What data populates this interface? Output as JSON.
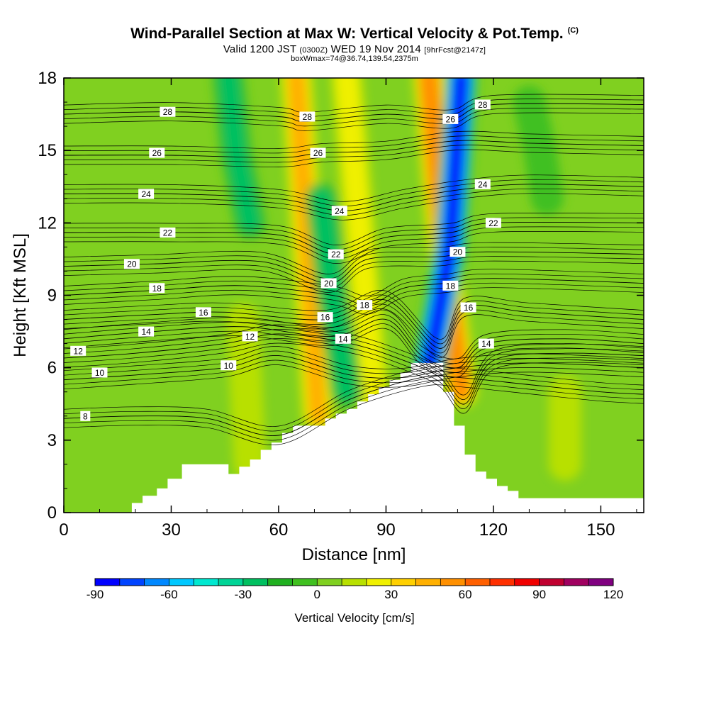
{
  "header": {
    "title": "Wind-Parallel Section at Max W: Vertical Velocity & Pot.Temp.",
    "copyright": "(C)",
    "valid_prefix": "Valid 1200 JST",
    "valid_zulu": "(0300Z)",
    "valid_date": "WED 19 Nov 2014",
    "forecast": "[9hrFcst@2147z]",
    "box_info": "boxWmax=74@36.74,139.54,2375m"
  },
  "chart_data": {
    "type": "heatmap",
    "xlabel": "Distance [nm]",
    "ylabel": "Height [Kft MSL]",
    "xlim": [
      0,
      162
    ],
    "ylim": [
      0,
      18
    ],
    "xticks": [
      0,
      30,
      60,
      90,
      120,
      150
    ],
    "yticks": [
      0,
      3,
      6,
      9,
      12,
      15,
      18
    ],
    "grid": false,
    "colorbar": {
      "label": "Vertical Velocity [cm/s]",
      "min": -90,
      "max": 120,
      "step": 10,
      "ticks": [
        -90,
        -60,
        -30,
        0,
        30,
        60,
        90,
        120
      ],
      "colors": [
        "#0000ff",
        "#0044ff",
        "#0088ff",
        "#00c8ff",
        "#00e8d0",
        "#00d496",
        "#00c060",
        "#20b020",
        "#40c020",
        "#80d020",
        "#b8e000",
        "#f0f000",
        "#ffd000",
        "#ffb000",
        "#ff9000",
        "#ff6000",
        "#ff3000",
        "#f00000",
        "#c00030",
        "#a00060",
        "#800080"
      ]
    },
    "terrain": {
      "x": [
        0,
        19,
        19,
        22,
        22,
        26,
        26,
        29,
        29,
        33,
        33,
        46,
        46,
        49,
        49,
        52,
        52,
        55,
        55,
        58,
        58,
        61,
        61,
        64,
        64,
        67,
        67,
        73,
        73,
        76,
        76,
        79,
        79,
        82,
        82,
        85,
        85,
        88,
        88,
        91,
        91,
        94,
        94,
        97,
        97,
        100,
        100,
        106,
        106,
        109,
        109,
        112,
        112,
        115,
        115,
        118,
        118,
        121,
        121,
        124,
        124,
        127,
        127,
        130,
        130,
        162
      ],
      "y": [
        0,
        0,
        0.4,
        0.4,
        0.7,
        0.7,
        1.0,
        1.0,
        1.4,
        1.4,
        2.0,
        2.0,
        1.6,
        1.6,
        1.9,
        1.9,
        2.2,
        2.2,
        2.6,
        2.6,
        2.9,
        2.9,
        3.3,
        3.3,
        3.6,
        3.6,
        3.6,
        3.6,
        3.9,
        3.9,
        4.1,
        4.1,
        4.3,
        4.3,
        4.6,
        4.6,
        4.9,
        4.9,
        5.2,
        5.2,
        5.5,
        5.5,
        5.8,
        5.8,
        6.2,
        6.2,
        6.2,
        6.2,
        5.0,
        5.0,
        3.6,
        3.6,
        2.4,
        2.4,
        1.7,
        1.7,
        1.4,
        1.4,
        1.1,
        1.1,
        0.9,
        0.9,
        0.6,
        0.6,
        0.6,
        0.6
      ]
    },
    "updrafts": [
      {
        "x": [
          71,
          68,
          65
        ],
        "y": [
          4,
          11,
          18
        ],
        "w": 40
      },
      {
        "x": [
          87,
          83,
          79
        ],
        "y": [
          4,
          11,
          18
        ],
        "w": 25
      },
      {
        "x": [
          111,
          106,
          102
        ],
        "y": [
          5,
          11,
          18
        ],
        "w": 55
      },
      {
        "x": [
          52,
          51,
          50
        ],
        "y": [
          2,
          5,
          8
        ],
        "w": 20
      },
      {
        "x": [
          140,
          140,
          140
        ],
        "y": [
          2,
          3.5,
          5
        ],
        "w": 15
      }
    ],
    "downdrafts": [
      {
        "x": [
          102,
          108,
          111
        ],
        "y": [
          6,
          11,
          18
        ],
        "w": -85
      },
      {
        "x": [
          79,
          75,
          72
        ],
        "y": [
          5,
          9,
          13
        ],
        "w": -30
      },
      {
        "x": [
          52,
          48,
          46
        ],
        "y": [
          12,
          15,
          18
        ],
        "w": -25
      },
      {
        "x": [
          135,
          133,
          130
        ],
        "y": [
          13,
          15,
          17
        ],
        "w": -20
      }
    ],
    "theta_contours": [
      {
        "label": "8",
        "pts": [
          [
            0,
            3.9
          ],
          [
            20,
            4.0
          ],
          [
            40,
            3.9
          ],
          [
            60,
            3.2
          ],
          [
            80,
            4.7
          ],
          [
            100,
            5.6
          ],
          [
            110,
            5.6
          ],
          [
            130,
            5.3
          ],
          [
            150,
            5.0
          ],
          [
            162,
            4.9
          ]
        ],
        "lx": 6,
        "ly": 4.0
      },
      {
        "label": "10",
        "pts": [
          [
            0,
            5.5
          ],
          [
            20,
            5.7
          ],
          [
            45,
            6.0
          ],
          [
            60,
            6.5
          ],
          [
            80,
            5.7
          ],
          [
            95,
            5.6
          ],
          [
            110,
            6.0
          ],
          [
            130,
            6.2
          ],
          [
            162,
            6.0
          ]
        ],
        "lx": 10,
        "ly": 5.8
      },
      {
        "label": "12",
        "pts": [
          [
            0,
            6.4
          ],
          [
            20,
            6.6
          ],
          [
            45,
            7.0
          ],
          [
            60,
            7.4
          ],
          [
            80,
            7.0
          ],
          [
            95,
            6.3
          ],
          [
            105,
            5.6
          ],
          [
            112,
            4.5
          ],
          [
            120,
            6.3
          ],
          [
            140,
            6.6
          ],
          [
            162,
            6.5
          ]
        ],
        "lx": 4,
        "ly": 6.7
      },
      {
        "label": "14",
        "pts": [
          [
            0,
            7.2
          ],
          [
            25,
            7.5
          ],
          [
            50,
            7.7
          ],
          [
            75,
            7.3
          ],
          [
            90,
            8.0
          ],
          [
            100,
            6.5
          ],
          [
            110,
            6.0
          ],
          [
            118,
            7.0
          ],
          [
            140,
            7.2
          ],
          [
            162,
            7.0
          ]
        ],
        "lx": 23,
        "ly": 7.5
      },
      {
        "label": "16",
        "pts": [
          [
            0,
            8.0
          ],
          [
            25,
            8.2
          ],
          [
            45,
            8.3
          ],
          [
            73,
            8.0
          ],
          [
            90,
            8.8
          ],
          [
            105,
            6.8
          ],
          [
            112,
            8.5
          ],
          [
            130,
            8.3
          ],
          [
            162,
            8.0
          ]
        ],
        "lx": 39,
        "ly": 8.3
      },
      {
        "label": "18",
        "pts": [
          [
            0,
            9.0
          ],
          [
            25,
            9.2
          ],
          [
            50,
            9.4
          ],
          [
            75,
            9.0
          ],
          [
            85,
            8.6
          ],
          [
            95,
            9.3
          ],
          [
            107,
            9.5
          ],
          [
            120,
            9.7
          ],
          [
            162,
            9.5
          ]
        ],
        "lx": 26,
        "ly": 9.3
      },
      {
        "label": "20",
        "pts": [
          [
            0,
            10.2
          ],
          [
            25,
            10.3
          ],
          [
            55,
            10.4
          ],
          [
            74,
            9.5
          ],
          [
            85,
            10.5
          ],
          [
            105,
            10.6
          ],
          [
            118,
            10.8
          ],
          [
            162,
            10.7
          ]
        ],
        "lx": 19,
        "ly": 10.3
      },
      {
        "label": "22",
        "pts": [
          [
            0,
            11.6
          ],
          [
            30,
            11.6
          ],
          [
            60,
            11.5
          ],
          [
            76,
            10.7
          ],
          [
            90,
            11.4
          ],
          [
            108,
            11.6
          ],
          [
            120,
            12.0
          ],
          [
            162,
            12.0
          ]
        ],
        "lx": 29,
        "ly": 11.6
      },
      {
        "label": "24",
        "pts": [
          [
            0,
            13.2
          ],
          [
            30,
            13.2
          ],
          [
            60,
            13.0
          ],
          [
            78,
            12.5
          ],
          [
            95,
            13.0
          ],
          [
            112,
            13.4
          ],
          [
            130,
            13.6
          ],
          [
            162,
            13.5
          ]
        ],
        "lx": 23,
        "ly": 13.2
      },
      {
        "label": "26",
        "pts": [
          [
            0,
            14.8
          ],
          [
            30,
            14.8
          ],
          [
            60,
            14.7
          ],
          [
            72,
            14.9
          ],
          [
            90,
            15.0
          ],
          [
            110,
            15.4
          ],
          [
            130,
            15.3
          ],
          [
            162,
            15.2
          ]
        ],
        "lx": 26,
        "ly": 14.9
      },
      {
        "label": "28",
        "pts": [
          [
            0,
            16.5
          ],
          [
            30,
            16.6
          ],
          [
            60,
            16.4
          ],
          [
            68,
            16.2
          ],
          [
            90,
            16.5
          ],
          [
            108,
            16.3
          ],
          [
            120,
            16.9
          ],
          [
            162,
            16.9
          ]
        ],
        "lx": 29,
        "ly": 16.6
      }
    ],
    "extra_labels": [
      {
        "label": "10",
        "x": 46,
        "y": 6.1
      },
      {
        "label": "12",
        "x": 52,
        "y": 7.3
      },
      {
        "label": "14",
        "x": 78,
        "y": 7.2
      },
      {
        "label": "14",
        "x": 118,
        "y": 7.0
      },
      {
        "label": "16",
        "x": 73,
        "y": 8.1
      },
      {
        "label": "16",
        "x": 113,
        "y": 8.5
      },
      {
        "label": "18",
        "x": 84,
        "y": 8.6
      },
      {
        "label": "18",
        "x": 108,
        "y": 9.4
      },
      {
        "label": "20",
        "x": 74,
        "y": 9.5
      },
      {
        "label": "20",
        "x": 110,
        "y": 10.8
      },
      {
        "label": "22",
        "x": 76,
        "y": 10.7
      },
      {
        "label": "22",
        "x": 120,
        "y": 12.0
      },
      {
        "label": "24",
        "x": 77,
        "y": 12.5
      },
      {
        "label": "24",
        "x": 117,
        "y": 13.6
      },
      {
        "label": "26",
        "x": 71,
        "y": 14.9
      },
      {
        "label": "26",
        "x": 108,
        "y": 16.3
      },
      {
        "label": "28",
        "x": 68,
        "y": 16.4
      },
      {
        "label": "28",
        "x": 117,
        "y": 16.9
      }
    ]
  }
}
